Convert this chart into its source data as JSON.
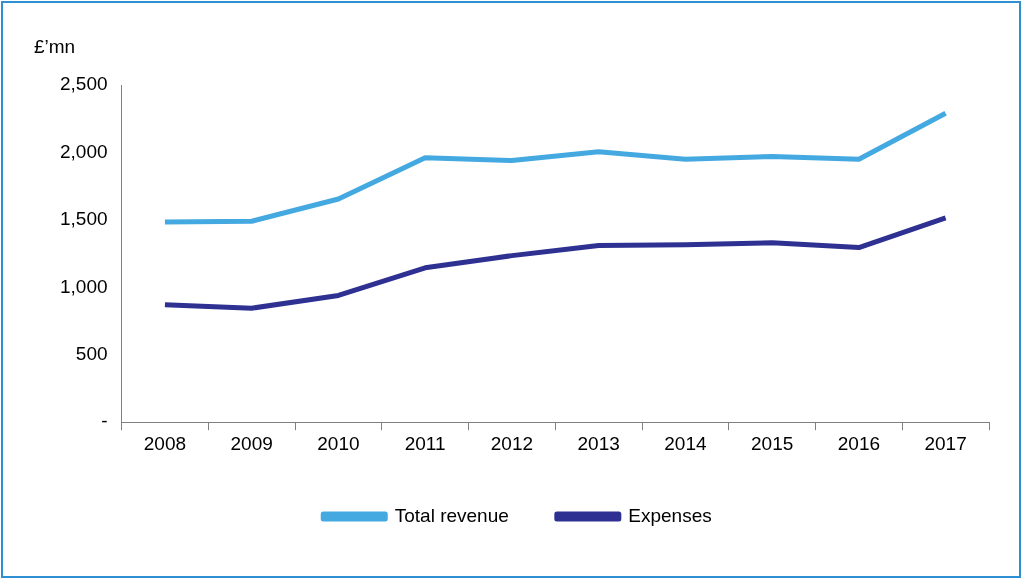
{
  "chart_data": {
    "type": "line",
    "ylabel": "£’mn",
    "categories": [
      "2008",
      "2009",
      "2010",
      "2011",
      "2012",
      "2013",
      "2014",
      "2015",
      "2016",
      "2017"
    ],
    "series": [
      {
        "name": "Total revenue",
        "color": "#45a9e1",
        "values": [
          1485,
          1490,
          1655,
          1960,
          1940,
          2005,
          1950,
          1970,
          1950,
          2290
        ]
      },
      {
        "name": "Expenses",
        "color": "#2e3192",
        "values": [
          870,
          845,
          940,
          1145,
          1235,
          1310,
          1315,
          1330,
          1295,
          1515
        ]
      }
    ],
    "ylim": [
      0,
      2500
    ],
    "yticks": [
      {
        "value": 0,
        "label": "-"
      },
      500,
      {
        "value": 1000,
        "label": "1,000"
      },
      {
        "value": 1500,
        "label": "1,500"
      },
      {
        "value": 2000,
        "label": "2,000"
      },
      {
        "value": 2500,
        "label": "2,500"
      }
    ],
    "grid": false,
    "legend": "bottom",
    "marker": "none",
    "line_style": "solid"
  }
}
